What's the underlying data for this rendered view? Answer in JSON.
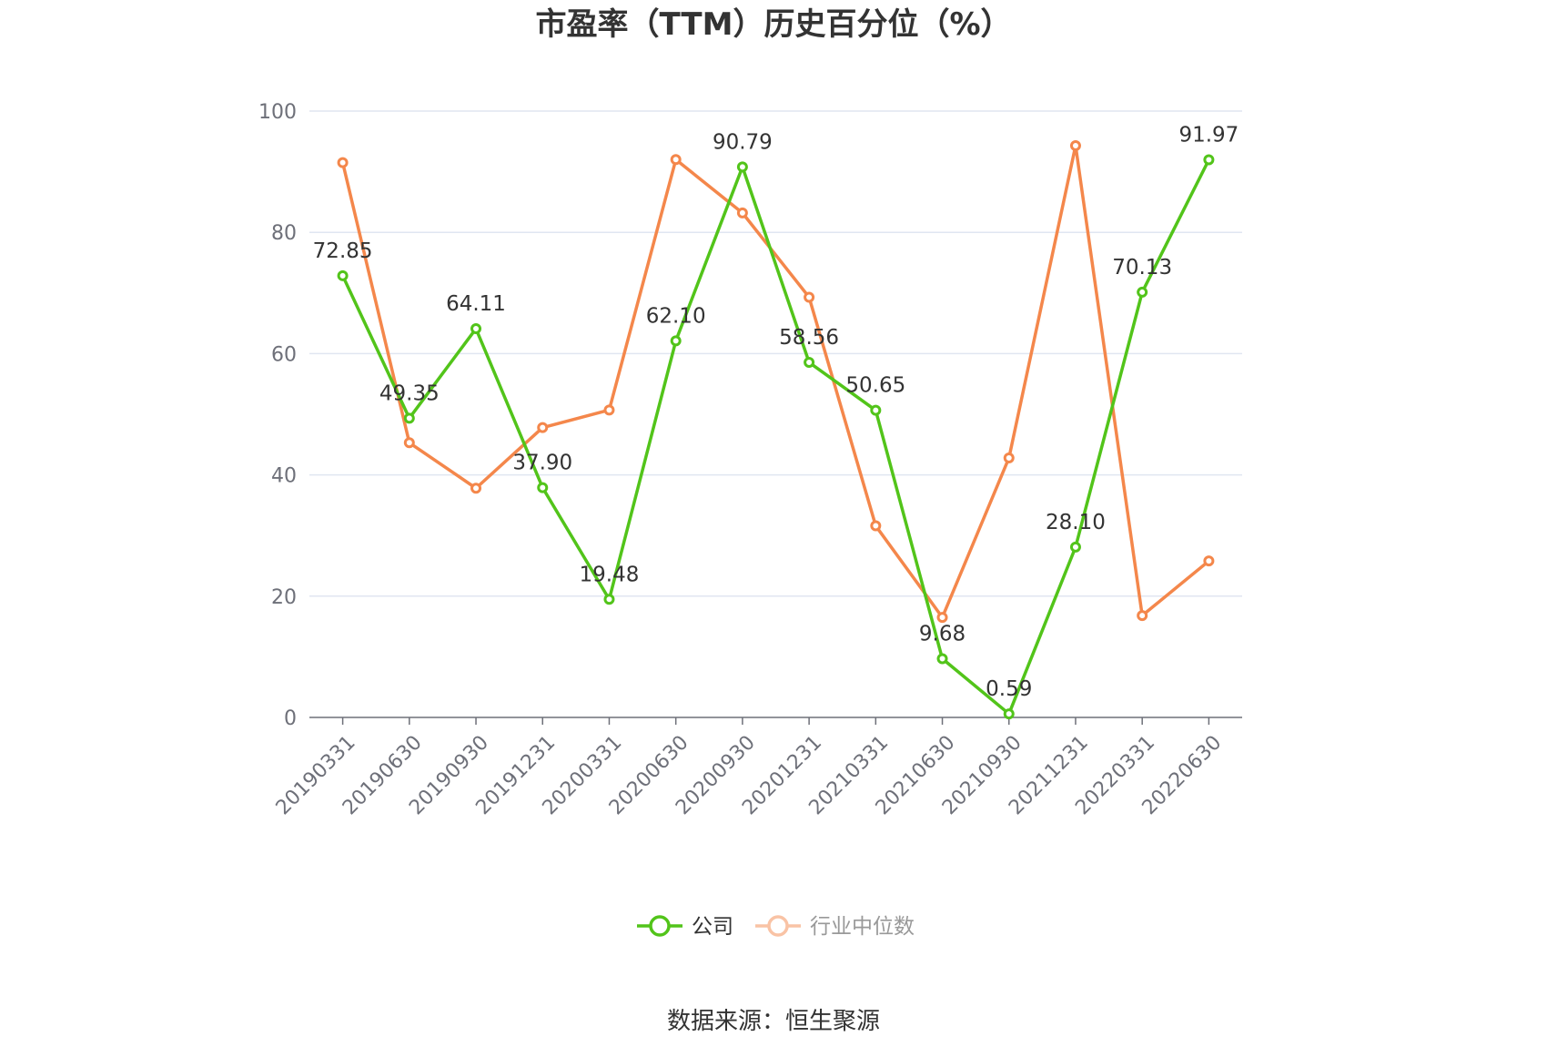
{
  "chart_data": {
    "type": "line",
    "title": "市盈率（TTM）历史百分位（%）",
    "categories": [
      "20190331",
      "20190630",
      "20190930",
      "20191231",
      "20200331",
      "20200630",
      "20200930",
      "20201231",
      "20210331",
      "20210630",
      "20210930",
      "20211231",
      "20220331",
      "20220630"
    ],
    "series": [
      {
        "name": "公司",
        "color": "#52c41a",
        "labels": true,
        "values": [
          72.85,
          49.35,
          64.11,
          37.9,
          19.48,
          62.1,
          90.79,
          58.56,
          50.65,
          9.68,
          0.59,
          28.1,
          70.13,
          91.97
        ]
      },
      {
        "name": "行业中位数",
        "color": "#f4874b",
        "labels": false,
        "values": [
          91.5,
          45.3,
          37.8,
          47.8,
          50.7,
          92.0,
          83.2,
          69.3,
          31.6,
          16.5,
          42.8,
          94.3,
          16.8,
          25.8
        ]
      }
    ],
    "ylim": [
      0,
      100
    ],
    "yticks": [
      0,
      20,
      40,
      60,
      80,
      100
    ],
    "grid": true,
    "legend_position": "bottom",
    "legend_inactive_color": "#f9c3a5",
    "legend_inactive_text_color": "#999999"
  },
  "source_text": "数据来源：恒生聚源"
}
